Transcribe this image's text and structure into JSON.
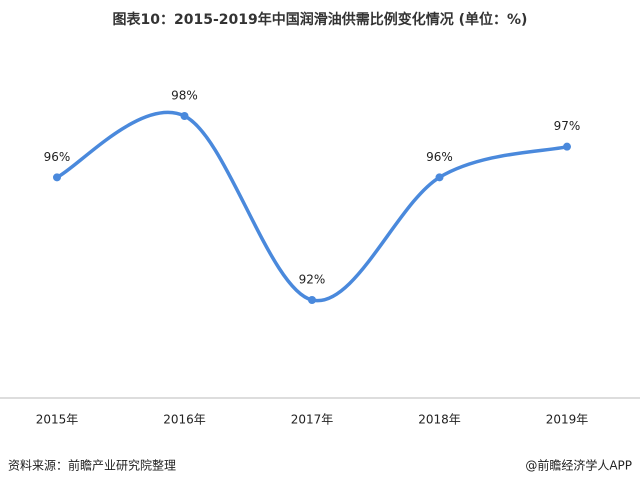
{
  "chart_data": {
    "type": "line",
    "title": "图表10：2015-2019年中国润滑油供需比例变化情况 (单位：%)",
    "categories": [
      "2015年",
      "2016年",
      "2017年",
      "2018年",
      "2019年"
    ],
    "series": [
      {
        "name": "供需比例",
        "color": "#4a89dc",
        "values": [
          96,
          98,
          92,
          96,
          97
        ],
        "value_labels": [
          "96%",
          "98%",
          "92%",
          "96%",
          "97%"
        ]
      }
    ],
    "source": "资料来源：前瞻产业研究院整理",
    "watermark": "@前瞻经济学人APP"
  }
}
